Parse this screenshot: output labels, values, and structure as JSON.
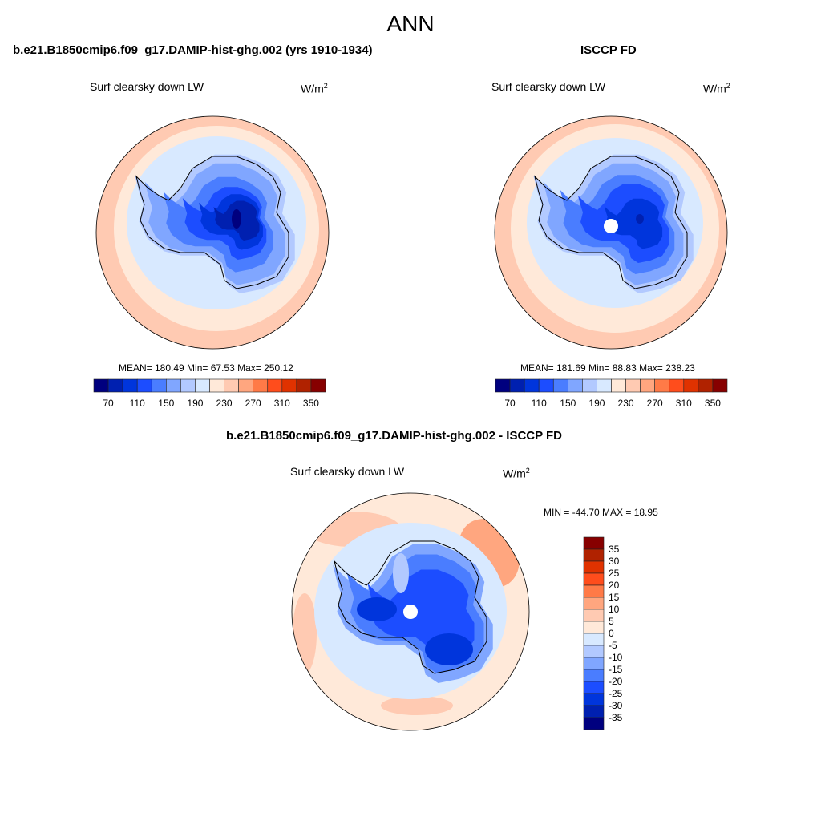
{
  "chart_data": {
    "type": "heatmap",
    "title": "ANN",
    "colors": [
      "#00007f",
      "#0020b0",
      "#0035dc",
      "#1c4dff",
      "#4a7dff",
      "#80a6ff",
      "#b2c9ff",
      "#d8e9ff",
      "#ffe9d9",
      "#ffcab2",
      "#ffa67f",
      "#ff7a47",
      "#ff4d1c",
      "#e03200",
      "#b02200",
      "#870000"
    ],
    "panels": [
      {
        "title": "b.e21.B1850cmip6.f09_g17.DAMIP-hist-ghg.002 (yrs 1910-1934)",
        "variable": "Surf clearsky down LW",
        "units": "W/m",
        "units_sup": "2",
        "stats": "MEAN= 180.49  Min=  67.53  Max= 250.12",
        "mean": 180.49,
        "min": 67.53,
        "max": 250.12,
        "colorbar_levels": [
          70,
          90,
          110,
          130,
          150,
          170,
          190,
          210,
          230,
          250,
          270,
          290,
          310,
          330,
          350
        ],
        "colorbar_tick_labels": [
          "70",
          "110",
          "150",
          "190",
          "230",
          "270",
          "310",
          "350"
        ]
      },
      {
        "title": "ISCCP FD",
        "variable": "Surf clearsky down LW",
        "units": "W/m",
        "units_sup": "2",
        "stats": "MEAN= 181.69  Min=  88.83  Max= 238.23",
        "mean": 181.69,
        "min": 88.83,
        "max": 238.23,
        "colorbar_levels": [
          70,
          90,
          110,
          130,
          150,
          170,
          190,
          210,
          230,
          250,
          270,
          290,
          310,
          330,
          350
        ],
        "colorbar_tick_labels": [
          "70",
          "110",
          "150",
          "190",
          "230",
          "270",
          "310",
          "350"
        ]
      },
      {
        "title": "b.e21.B1850cmip6.f09_g17.DAMIP-hist-ghg.002 - ISCCP FD",
        "variable": "Surf clearsky down LW",
        "units": "W/m",
        "units_sup": "2",
        "stats": "MIN = -44.70 MAX =  18.95",
        "min": -44.7,
        "max": 18.95,
        "colorbar_levels": [
          35,
          30,
          25,
          20,
          15,
          10,
          5,
          0,
          -5,
          -10,
          -15,
          -20,
          -25,
          -30,
          -35
        ],
        "colorbar_tick_labels": [
          "35",
          "30",
          "25",
          "20",
          "15",
          "10",
          "5",
          "0",
          "-5",
          "-10",
          "-15",
          "-20",
          "-25",
          "-30",
          "-35"
        ]
      }
    ]
  }
}
